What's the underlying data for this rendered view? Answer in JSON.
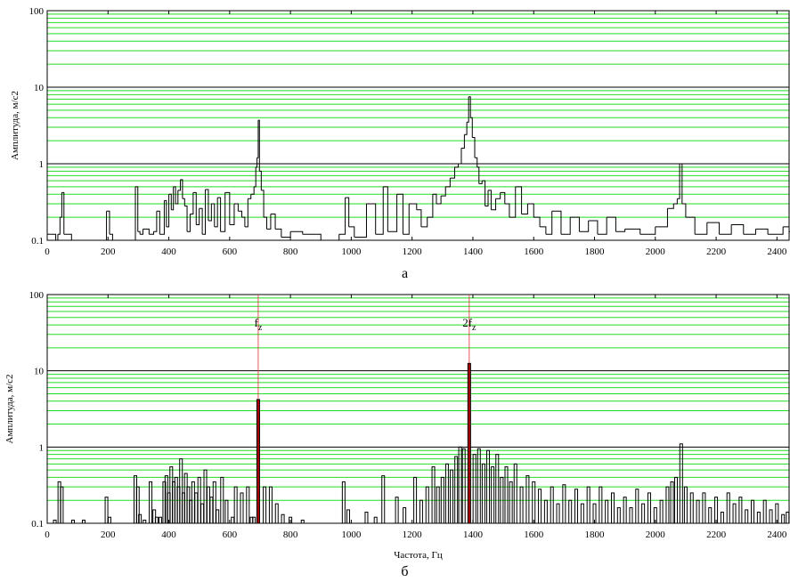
{
  "colors": {
    "grid_minor": "#22dd22",
    "grid_major": "#000000",
    "trace": "#000000",
    "peak_bar": "#b00000",
    "marker_line": "#e03030",
    "frame": "#000000",
    "background": "#ffffff"
  },
  "chart_data": [
    {
      "type": "line",
      "panel_label": "а",
      "ylabel": "Амплитуда, м/с2",
      "xlabel": "",
      "xlim": [
        0,
        2440
      ],
      "ylim": [
        0.1,
        100
      ],
      "yscale": "log",
      "grid": true,
      "x_ticks": [
        "0",
        "200",
        "400",
        "600",
        "800",
        "1000",
        "1200",
        "1400",
        "1600",
        "1800",
        "2000",
        "2200",
        "2400"
      ],
      "y_ticks": [
        "0.1",
        "1",
        "10",
        "100"
      ],
      "series": [
        {
          "values": [
            [
              0,
              0.12
            ],
            [
              10,
              0.12
            ],
            [
              28,
              0.1
            ],
            [
              35,
              0.12
            ],
            [
              42,
              0.2
            ],
            [
              48,
              0.42
            ],
            [
              55,
              0.12
            ],
            [
              80,
              0.1
            ],
            [
              120,
              0.1
            ],
            [
              195,
              0.24
            ],
            [
              205,
              0.12
            ],
            [
              215,
              0.1
            ],
            [
              290,
              0.5
            ],
            [
              298,
              0.13
            ],
            [
              305,
              0.12
            ],
            [
              315,
              0.14
            ],
            [
              335,
              0.12
            ],
            [
              350,
              0.13
            ],
            [
              360,
              0.24
            ],
            [
              370,
              0.12
            ],
            [
              385,
              0.33
            ],
            [
              392,
              0.15
            ],
            [
              400,
              0.4
            ],
            [
              408,
              0.25
            ],
            [
              415,
              0.5
            ],
            [
              422,
              0.3
            ],
            [
              430,
              0.45
            ],
            [
              438,
              0.62
            ],
            [
              445,
              0.35
            ],
            [
              452,
              0.28
            ],
            [
              460,
              0.13
            ],
            [
              470,
              0.22
            ],
            [
              480,
              0.42
            ],
            [
              490,
              0.16
            ],
            [
              500,
              0.26
            ],
            [
              510,
              0.12
            ],
            [
              520,
              0.46
            ],
            [
              530,
              0.18
            ],
            [
              540,
              0.3
            ],
            [
              550,
              0.15
            ],
            [
              560,
              0.36
            ],
            [
              570,
              0.13
            ],
            [
              585,
              0.42
            ],
            [
              600,
              0.16
            ],
            [
              615,
              0.3
            ],
            [
              628,
              0.24
            ],
            [
              640,
              0.2
            ],
            [
              650,
              0.15
            ],
            [
              660,
              0.35
            ],
            [
              670,
              0.4
            ],
            [
              680,
              0.5
            ],
            [
              686,
              0.9
            ],
            [
              690,
              1.2
            ],
            [
              694,
              3.7
            ],
            [
              698,
              0.8
            ],
            [
              704,
              0.45
            ],
            [
              712,
              0.2
            ],
            [
              722,
              0.14
            ],
            [
              735,
              0.22
            ],
            [
              750,
              0.14
            ],
            [
              770,
              0.11
            ],
            [
              800,
              0.13
            ],
            [
              840,
              0.12
            ],
            [
              900,
              0.1
            ],
            [
              960,
              0.12
            ],
            [
              980,
              0.36
            ],
            [
              992,
              0.15
            ],
            [
              1010,
              0.11
            ],
            [
              1050,
              0.3
            ],
            [
              1080,
              0.12
            ],
            [
              1105,
              0.5
            ],
            [
              1120,
              0.13
            ],
            [
              1150,
              0.4
            ],
            [
              1170,
              0.12
            ],
            [
              1190,
              0.3
            ],
            [
              1215,
              0.25
            ],
            [
              1230,
              0.15
            ],
            [
              1250,
              0.2
            ],
            [
              1268,
              0.4
            ],
            [
              1280,
              0.3
            ],
            [
              1295,
              0.38
            ],
            [
              1310,
              0.5
            ],
            [
              1325,
              0.65
            ],
            [
              1340,
              0.9
            ],
            [
              1352,
              1.0
            ],
            [
              1362,
              1.6
            ],
            [
              1372,
              2.4
            ],
            [
              1380,
              3.5
            ],
            [
              1386,
              7.5
            ],
            [
              1392,
              4.0
            ],
            [
              1398,
              2.2
            ],
            [
              1406,
              1.2
            ],
            [
              1414,
              0.9
            ],
            [
              1420,
              0.55
            ],
            [
              1430,
              0.6
            ],
            [
              1440,
              0.28
            ],
            [
              1450,
              0.45
            ],
            [
              1460,
              0.25
            ],
            [
              1475,
              0.35
            ],
            [
              1490,
              0.42
            ],
            [
              1505,
              0.3
            ],
            [
              1520,
              0.2
            ],
            [
              1540,
              0.5
            ],
            [
              1560,
              0.22
            ],
            [
              1580,
              0.3
            ],
            [
              1600,
              0.2
            ],
            [
              1620,
              0.15
            ],
            [
              1640,
              0.12
            ],
            [
              1660,
              0.24
            ],
            [
              1690,
              0.12
            ],
            [
              1720,
              0.2
            ],
            [
              1750,
              0.13
            ],
            [
              1780,
              0.18
            ],
            [
              1810,
              0.12
            ],
            [
              1840,
              0.2
            ],
            [
              1870,
              0.13
            ],
            [
              1900,
              0.14
            ],
            [
              1950,
              0.12
            ],
            [
              2000,
              0.15
            ],
            [
              2040,
              0.26
            ],
            [
              2060,
              0.3
            ],
            [
              2072,
              0.35
            ],
            [
              2080,
              1.0
            ],
            [
              2088,
              0.3
            ],
            [
              2100,
              0.2
            ],
            [
              2130,
              0.12
            ],
            [
              2170,
              0.17
            ],
            [
              2210,
              0.12
            ],
            [
              2250,
              0.16
            ],
            [
              2290,
              0.12
            ],
            [
              2330,
              0.14
            ],
            [
              2370,
              0.12
            ],
            [
              2420,
              0.15
            ],
            [
              2440,
              0.13
            ]
          ]
        }
      ]
    },
    {
      "type": "bar",
      "panel_label": "б",
      "ylabel": "Амплитуда, м/с2",
      "xlabel": "Частота, Гц",
      "xlim": [
        0,
        2440
      ],
      "ylim": [
        0.1,
        100
      ],
      "yscale": "log",
      "grid": true,
      "x_ticks": [
        "0",
        "200",
        "400",
        "600",
        "800",
        "1000",
        "1200",
        "1400",
        "1600",
        "1800",
        "2000",
        "2200",
        "2400"
      ],
      "y_ticks": [
        "0.1",
        "1",
        "10",
        "100"
      ],
      "markers": [
        {
          "x": 694,
          "label_main": "f",
          "label_sub": "z"
        },
        {
          "x": 1388,
          "label_main": "2f",
          "label_sub": "z"
        }
      ],
      "series": [
        {
          "values": [
            [
              25,
              0.11
            ],
            [
              40,
              0.35
            ],
            [
              48,
              0.3
            ],
            [
              85,
              0.11
            ],
            [
              120,
              0.11
            ],
            [
              195,
              0.22
            ],
            [
              205,
              0.12
            ],
            [
              290,
              0.42
            ],
            [
              298,
              0.3
            ],
            [
              305,
              0.13
            ],
            [
              320,
              0.11
            ],
            [
              340,
              0.35
            ],
            [
              352,
              0.15
            ],
            [
              360,
              0.12
            ],
            [
              372,
              0.12
            ],
            [
              385,
              0.35
            ],
            [
              392,
              0.42
            ],
            [
              400,
              0.25
            ],
            [
              408,
              0.55
            ],
            [
              416,
              0.35
            ],
            [
              424,
              0.4
            ],
            [
              432,
              0.3
            ],
            [
              440,
              0.7
            ],
            [
              448,
              0.25
            ],
            [
              456,
              0.45
            ],
            [
              464,
              0.3
            ],
            [
              472,
              0.2
            ],
            [
              480,
              0.35
            ],
            [
              490,
              0.25
            ],
            [
              500,
              0.4
            ],
            [
              510,
              0.18
            ],
            [
              520,
              0.5
            ],
            [
              530,
              0.3
            ],
            [
              540,
              0.22
            ],
            [
              550,
              0.35
            ],
            [
              560,
              0.15
            ],
            [
              575,
              0.4
            ],
            [
              590,
              0.2
            ],
            [
              610,
              0.12
            ],
            [
              620,
              0.3
            ],
            [
              640,
              0.25
            ],
            [
              660,
              0.3
            ],
            [
              672,
              0.12
            ],
            [
              680,
              0.12
            ],
            [
              694,
              4.2
            ],
            [
              715,
              0.3
            ],
            [
              735,
              0.3
            ],
            [
              755,
              0.18
            ],
            [
              775,
              0.13
            ],
            [
              800,
              0.12
            ],
            [
              840,
              0.11
            ],
            [
              975,
              0.35
            ],
            [
              990,
              0.15
            ],
            [
              1010,
              0.1
            ],
            [
              1050,
              0.14
            ],
            [
              1080,
              0.12
            ],
            [
              1105,
              0.42
            ],
            [
              1150,
              0.22
            ],
            [
              1175,
              0.16
            ],
            [
              1210,
              0.4
            ],
            [
              1230,
              0.2
            ],
            [
              1250,
              0.3
            ],
            [
              1270,
              0.55
            ],
            [
              1285,
              0.3
            ],
            [
              1300,
              0.4
            ],
            [
              1315,
              0.6
            ],
            [
              1330,
              0.5
            ],
            [
              1345,
              0.75
            ],
            [
              1358,
              1.0
            ],
            [
              1370,
              0.95
            ],
            [
              1388,
              12.5
            ],
            [
              1405,
              0.8
            ],
            [
              1420,
              0.95
            ],
            [
              1435,
              0.6
            ],
            [
              1450,
              0.9
            ],
            [
              1465,
              0.55
            ],
            [
              1480,
              0.8
            ],
            [
              1495,
              0.4
            ],
            [
              1510,
              0.55
            ],
            [
              1525,
              0.35
            ],
            [
              1540,
              0.6
            ],
            [
              1560,
              0.3
            ],
            [
              1580,
              0.42
            ],
            [
              1600,
              0.35
            ],
            [
              1620,
              0.28
            ],
            [
              1640,
              0.2
            ],
            [
              1660,
              0.3
            ],
            [
              1680,
              0.18
            ],
            [
              1700,
              0.32
            ],
            [
              1720,
              0.2
            ],
            [
              1740,
              0.28
            ],
            [
              1760,
              0.18
            ],
            [
              1780,
              0.3
            ],
            [
              1800,
              0.18
            ],
            [
              1820,
              0.3
            ],
            [
              1840,
              0.2
            ],
            [
              1860,
              0.25
            ],
            [
              1880,
              0.16
            ],
            [
              1900,
              0.22
            ],
            [
              1920,
              0.16
            ],
            [
              1940,
              0.28
            ],
            [
              1960,
              0.18
            ],
            [
              1980,
              0.25
            ],
            [
              2000,
              0.16
            ],
            [
              2020,
              0.2
            ],
            [
              2040,
              0.3
            ],
            [
              2055,
              0.35
            ],
            [
              2068,
              0.4
            ],
            [
              2085,
              1.1
            ],
            [
              2100,
              0.3
            ],
            [
              2120,
              0.25
            ],
            [
              2140,
              0.2
            ],
            [
              2160,
              0.25
            ],
            [
              2180,
              0.16
            ],
            [
              2200,
              0.22
            ],
            [
              2220,
              0.14
            ],
            [
              2240,
              0.25
            ],
            [
              2260,
              0.18
            ],
            [
              2280,
              0.22
            ],
            [
              2300,
              0.15
            ],
            [
              2320,
              0.2
            ],
            [
              2340,
              0.14
            ],
            [
              2360,
              0.2
            ],
            [
              2380,
              0.15
            ],
            [
              2400,
              0.18
            ],
            [
              2420,
              0.13
            ],
            [
              2435,
              0.14
            ]
          ]
        }
      ]
    }
  ]
}
